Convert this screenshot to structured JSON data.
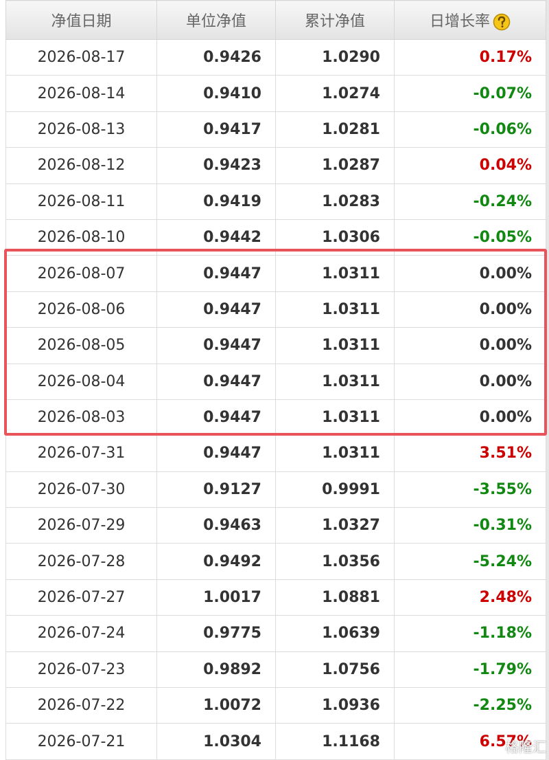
{
  "table": {
    "headers": [
      "净值日期",
      "单位净值",
      "累计净值",
      "日增长率"
    ],
    "rows": [
      [
        "2026-08-17",
        "0.9426",
        "1.0290",
        "0.17%"
      ],
      [
        "2026-08-14",
        "0.9410",
        "1.0274",
        "-0.07%"
      ],
      [
        "2026-08-13",
        "0.9417",
        "1.0281",
        "-0.06%"
      ],
      [
        "2026-08-12",
        "0.9423",
        "1.0287",
        "0.04%"
      ],
      [
        "2026-08-11",
        "0.9419",
        "1.0283",
        "-0.24%"
      ],
      [
        "2026-08-10",
        "0.9442",
        "1.0306",
        "-0.05%"
      ],
      [
        "2026-08-07",
        "0.9447",
        "1.0311",
        "0.00%"
      ],
      [
        "2026-08-06",
        "0.9447",
        "1.0311",
        "0.00%"
      ],
      [
        "2026-08-05",
        "0.9447",
        "1.0311",
        "0.00%"
      ],
      [
        "2026-08-04",
        "0.9447",
        "1.0311",
        "0.00%"
      ],
      [
        "2026-08-03",
        "0.9447",
        "1.0311",
        "0.00%"
      ],
      [
        "2026-07-31",
        "0.9447",
        "1.0311",
        "3.51%"
      ],
      [
        "2026-07-30",
        "0.9127",
        "0.9991",
        "-3.55%"
      ],
      [
        "2026-07-29",
        "0.9463",
        "1.0327",
        "-0.31%"
      ],
      [
        "2026-07-28",
        "0.9492",
        "1.0356",
        "-5.24%"
      ],
      [
        "2026-07-27",
        "1.0017",
        "1.0881",
        "2.48%"
      ],
      [
        "2026-07-24",
        "0.9775",
        "1.0639",
        "-1.18%"
      ],
      [
        "2026-07-23",
        "0.9892",
        "1.0756",
        "-1.79%"
      ],
      [
        "2026-07-22",
        "1.0072",
        "1.0936",
        "-2.25%"
      ],
      [
        "2026-07-21",
        "1.0304",
        "1.1168",
        "6.57%"
      ]
    ]
  },
  "watermark": "格隆汇"
}
